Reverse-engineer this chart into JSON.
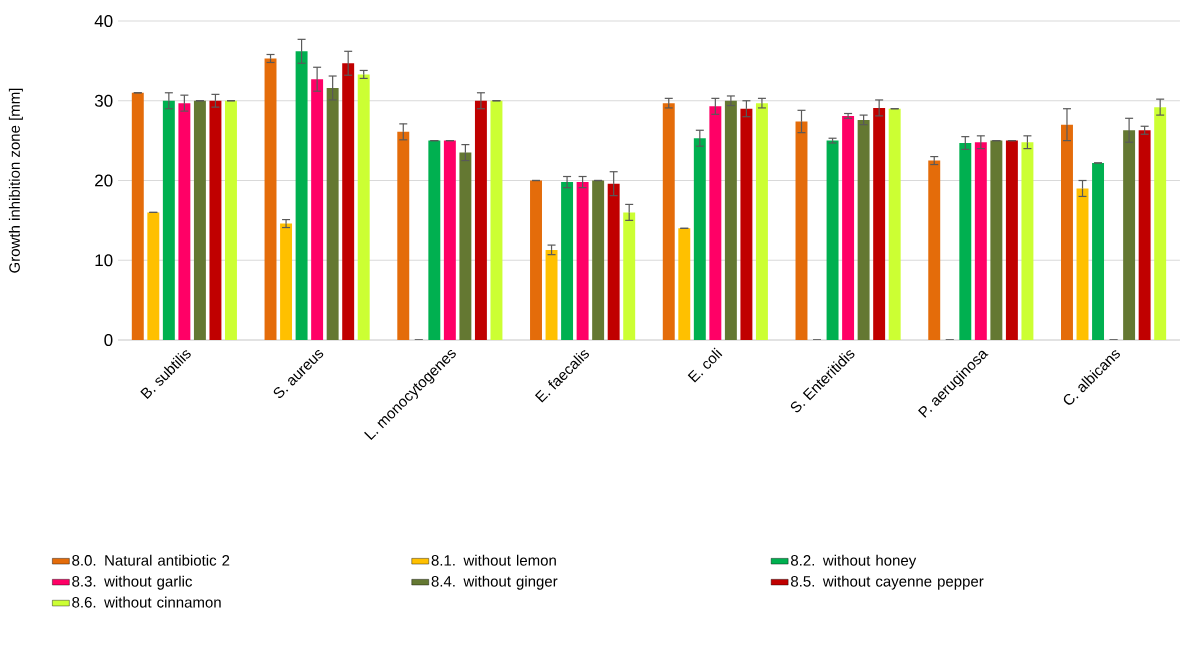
{
  "chart_data": {
    "type": "bar",
    "ylabel": "Growth inhibition zone [mm]",
    "categories": [
      "B. subtilis",
      "S. aureus",
      "L. monocytogenes",
      "E. faecalis",
      "E. coli",
      "S. Enteritidis",
      "P. aeruginosa",
      "C. albicans"
    ],
    "series": [
      {
        "name": "8.0. Natural antibiotic 2",
        "color": "#e46c0a",
        "values": [
          31,
          35.3,
          26.1,
          20,
          29.7,
          27.4,
          22.5,
          27
        ],
        "errors": [
          0,
          0.5,
          1,
          0,
          0.6,
          1.4,
          0.5,
          2
        ]
      },
      {
        "name": "8.1. without lemon",
        "color": "#ffc000",
        "values": [
          16,
          14.6,
          0,
          11.3,
          14,
          0,
          0,
          19
        ],
        "errors": [
          0,
          0.5,
          0,
          0.6,
          0,
          0,
          0,
          1
        ]
      },
      {
        "name": "8.2. without honey",
        "color": "#00b050",
        "values": [
          30,
          36.2,
          25,
          19.8,
          25.3,
          25,
          24.7,
          22.2
        ],
        "errors": [
          1,
          1.5,
          0,
          0.7,
          1,
          0.3,
          0.8,
          0
        ]
      },
      {
        "name": "8.3. without garlic",
        "color": "#ff0066",
        "values": [
          29.7,
          32.7,
          25,
          19.8,
          29.3,
          28.1,
          24.8,
          0
        ],
        "errors": [
          1,
          1.5,
          0,
          0.7,
          1,
          0.3,
          0.8,
          0
        ]
      },
      {
        "name": "8.4. without ginger",
        "color": "#647832",
        "values": [
          30,
          31.6,
          23.5,
          20,
          30,
          27.6,
          25,
          26.3
        ],
        "errors": [
          0,
          1.5,
          1,
          0,
          0.6,
          0.6,
          0,
          1.5
        ]
      },
      {
        "name": "8.5. without cayenne pepper",
        "color": "#c00000",
        "values": [
          30,
          34.7,
          30,
          19.6,
          29,
          29.1,
          25,
          26.3
        ],
        "errors": [
          0.8,
          1.5,
          1,
          1.5,
          1,
          1,
          0,
          0.5
        ]
      },
      {
        "name": "8.6. without cinnamon",
        "color": "#ccff33",
        "values": [
          30,
          33.3,
          30,
          16,
          29.7,
          29,
          24.8,
          29.2
        ],
        "errors": [
          0,
          0.5,
          0,
          1,
          0.6,
          0,
          0.8,
          1
        ]
      }
    ],
    "ylim": [
      0,
      40
    ],
    "yticks": [
      0,
      10,
      20,
      30,
      40
    ],
    "grid": "y",
    "legend": "bottom"
  }
}
